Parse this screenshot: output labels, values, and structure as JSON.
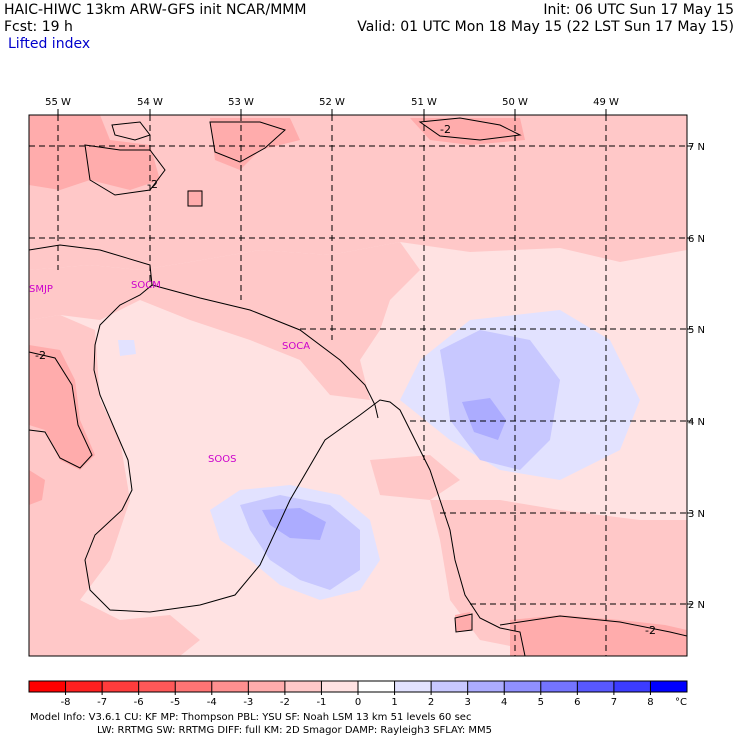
{
  "header": {
    "model_line": "HAIC-HIWC 13km ARW-GFS init   NCAR/MMM",
    "init_line": "Init: 06 UTC Sun 17 May 15",
    "forecast_line": "Fcst:   19 h",
    "valid_line": "Valid: 01 UTC Mon 18 May 15 (22 LST Sun 17 May 15)",
    "field_name": "Lifted index"
  },
  "map": {
    "lon_labels": [
      "55 W",
      "54 W",
      "53 W",
      "52 W",
      "51 W",
      "50 W",
      "49 W"
    ],
    "lat_labels": [
      "7 N",
      "6 N",
      "5 N",
      "4 N",
      "3 N",
      "2 N"
    ],
    "contour_labels": [
      "-2",
      "-2",
      "-2",
      "-2"
    ],
    "stations": [
      "SMJP",
      "SOCM",
      "SOCA",
      "SOOS"
    ]
  },
  "colorbar": {
    "unit": "°C",
    "tick_labels": [
      "-8",
      "-7",
      "-6",
      "-5",
      "-4",
      "-3",
      "-2",
      "-1",
      "0",
      "1",
      "2",
      "3",
      "4",
      "5",
      "6",
      "7",
      "8"
    ],
    "colors": [
      "#ff0000",
      "#ff2020",
      "#ff3c3c",
      "#ff5858",
      "#ff7474",
      "#ff9090",
      "#ffacac",
      "#ffc8c8",
      "#ffe2e2",
      "#ffffff",
      "#e2e2ff",
      "#c8c8ff",
      "#acacff",
      "#9090ff",
      "#7474ff",
      "#5858ff",
      "#3c3cff",
      "#0000ff"
    ]
  },
  "footer": {
    "line1": "Model Info: V3.6.1    CU: KF       MP: Thompson     PBL: YSU       SF: Noah LSM     13 km   51 levels   60 sec",
    "line2": "LW: RRTMG    SW: RRTMG  DIFF: full    KM: 2D Smagor DAMP: Rayleigh3  SFLAY: MM5"
  }
}
